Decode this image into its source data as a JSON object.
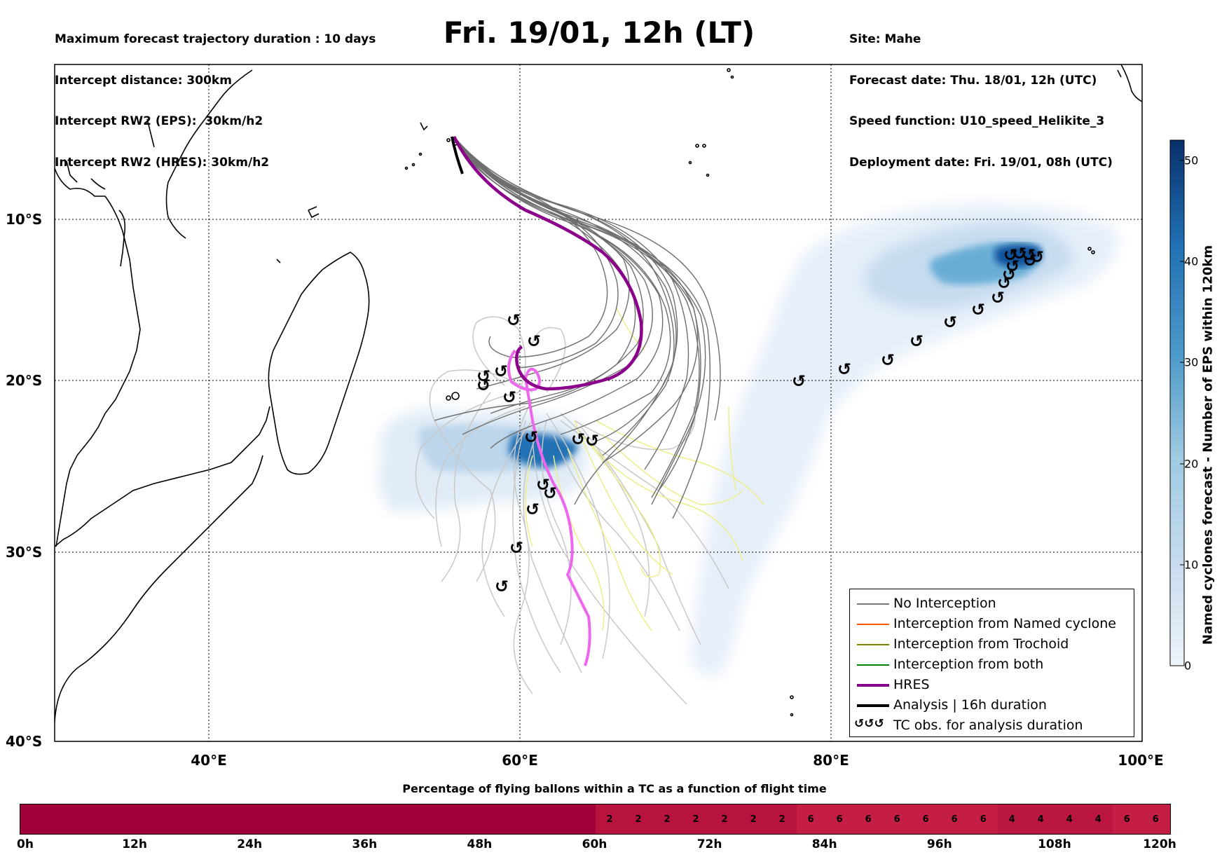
{
  "header": {
    "left_lines": [
      "Maximum forecast trajectory duration : 10 days",
      "Intercept distance: 300km",
      "Intercept RW2 (EPS):  30km/h2",
      "Intercept RW2 (HRES): 30km/h2"
    ],
    "right_lines": [
      "Site: Mahe",
      "Forecast date: Thu. 18/01, 12h (UTC)",
      "Speed function: U10_speed_Helikite_3",
      "Deployment date: Fri. 19/01, 08h (UTC)"
    ],
    "title": "Fri. 19/01, 12h (LT)"
  },
  "map": {
    "lon_range": [
      30,
      100
    ],
    "lat_range": [
      -40,
      0
    ],
    "lat_labels": [
      "10°S",
      "20°S",
      "30°S",
      "40°S"
    ],
    "lon_labels": [
      "40°E",
      "60°E",
      "80°E",
      "100°E"
    ],
    "grid_lines": "dotted"
  },
  "legend": {
    "items": [
      {
        "label": "No Interception",
        "color": "#777777"
      },
      {
        "label": "Interception from Named cyclone",
        "color": "#ff5500"
      },
      {
        "label": "Interception from Trochoid",
        "color": "#808000"
      },
      {
        "label": "Interception from both",
        "color": "#008000"
      },
      {
        "label": "HRES",
        "color": "#8b008b"
      },
      {
        "label": "Analysis | 16h duration",
        "color": "#000000"
      },
      {
        "label": "TC obs. for analysis duration",
        "color": "#000000",
        "symbol": "↺↺↺"
      }
    ]
  },
  "vertical_colorbar": {
    "title": "Named cyclones forecast - Number of EPS within 120km",
    "ticks": [
      "0",
      "10",
      "20",
      "30",
      "40",
      "50"
    ],
    "range": [
      0,
      52
    ],
    "color_low": "#e8f0fa",
    "color_high": "#08306b"
  },
  "bottom_colorbar": {
    "title": "Percentage of flying ballons within a TC as a function of flight time",
    "hour_labels": [
      "0h",
      "12h",
      "24h",
      "36h",
      "48h",
      "60h",
      "72h",
      "84h",
      "96h",
      "108h",
      "120h"
    ],
    "segments": [
      {
        "from_h": 0,
        "to_h": 60,
        "value": "",
        "color": "#a0003a"
      },
      {
        "from_h": 60,
        "to_h": 63,
        "value": "2",
        "color": "#b8123f"
      },
      {
        "from_h": 63,
        "to_h": 66,
        "value": "2",
        "color": "#b8123f"
      },
      {
        "from_h": 66,
        "to_h": 69,
        "value": "2",
        "color": "#b8123f"
      },
      {
        "from_h": 69,
        "to_h": 72,
        "value": "2",
        "color": "#b8123f"
      },
      {
        "from_h": 72,
        "to_h": 75,
        "value": "2",
        "color": "#b8123f"
      },
      {
        "from_h": 75,
        "to_h": 78,
        "value": "2",
        "color": "#b8123f"
      },
      {
        "from_h": 78,
        "to_h": 81,
        "value": "2",
        "color": "#b8123f"
      },
      {
        "from_h": 81,
        "to_h": 84,
        "value": "6",
        "color": "#c41e44"
      },
      {
        "from_h": 84,
        "to_h": 87,
        "value": "6",
        "color": "#c41e44"
      },
      {
        "from_h": 87,
        "to_h": 90,
        "value": "6",
        "color": "#c41e44"
      },
      {
        "from_h": 90,
        "to_h": 93,
        "value": "6",
        "color": "#c41e44"
      },
      {
        "from_h": 93,
        "to_h": 96,
        "value": "6",
        "color": "#c41e44"
      },
      {
        "from_h": 96,
        "to_h": 99,
        "value": "6",
        "color": "#c41e44"
      },
      {
        "from_h": 99,
        "to_h": 102,
        "value": "6",
        "color": "#c41e44"
      },
      {
        "from_h": 102,
        "to_h": 105,
        "value": "4",
        "color": "#bb1640"
      },
      {
        "from_h": 105,
        "to_h": 108,
        "value": "4",
        "color": "#bb1640"
      },
      {
        "from_h": 108,
        "to_h": 111,
        "value": "4",
        "color": "#bb1640"
      },
      {
        "from_h": 111,
        "to_h": 114,
        "value": "4",
        "color": "#bb1640"
      },
      {
        "from_h": 114,
        "to_h": 117,
        "value": "6",
        "color": "#c41e44"
      },
      {
        "from_h": 117,
        "to_h": 120,
        "value": "6",
        "color": "#c41e44"
      }
    ]
  }
}
